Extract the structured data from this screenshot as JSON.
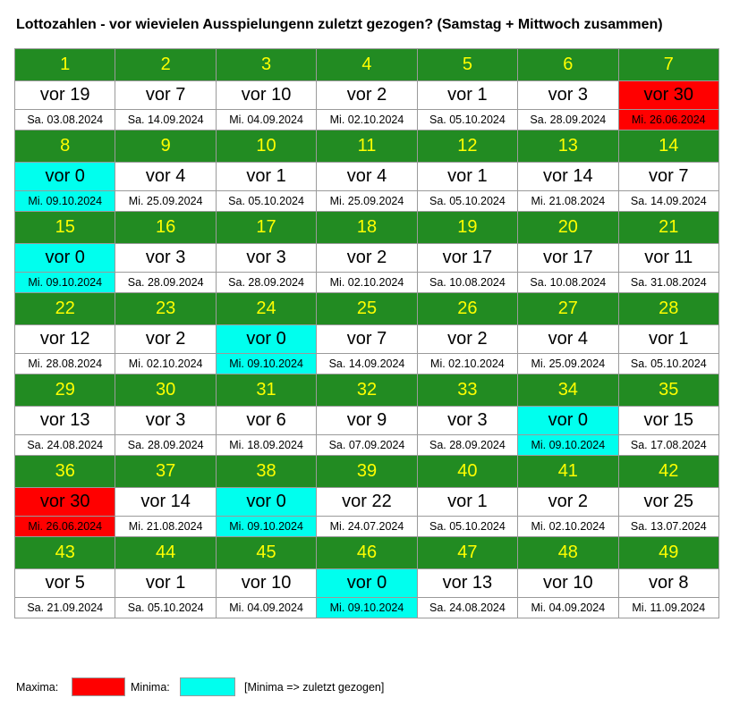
{
  "title": "Lottozahlen - vor wievielen Ausspielungenn zuletzt gezogen? (Samstag + Mittwoch zusammen)",
  "colors": {
    "header_bg": "#228b22",
    "header_text": "#ffff00",
    "maxima": "#ff0000",
    "minima": "#00ffee"
  },
  "numbers": [
    {
      "n": "1",
      "vor": "vor 19",
      "date": "Sa. 03.08.2024",
      "mark": ""
    },
    {
      "n": "2",
      "vor": "vor 7",
      "date": "Sa. 14.09.2024",
      "mark": ""
    },
    {
      "n": "3",
      "vor": "vor 10",
      "date": "Mi. 04.09.2024",
      "mark": ""
    },
    {
      "n": "4",
      "vor": "vor 2",
      "date": "Mi. 02.10.2024",
      "mark": ""
    },
    {
      "n": "5",
      "vor": "vor 1",
      "date": "Sa. 05.10.2024",
      "mark": ""
    },
    {
      "n": "6",
      "vor": "vor 3",
      "date": "Sa. 28.09.2024",
      "mark": ""
    },
    {
      "n": "7",
      "vor": "vor 30",
      "date": "Mi. 26.06.2024",
      "mark": "max"
    },
    {
      "n": "8",
      "vor": "vor 0",
      "date": "Mi. 09.10.2024",
      "mark": "min"
    },
    {
      "n": "9",
      "vor": "vor 4",
      "date": "Mi. 25.09.2024",
      "mark": ""
    },
    {
      "n": "10",
      "vor": "vor 1",
      "date": "Sa. 05.10.2024",
      "mark": ""
    },
    {
      "n": "11",
      "vor": "vor 4",
      "date": "Mi. 25.09.2024",
      "mark": ""
    },
    {
      "n": "12",
      "vor": "vor 1",
      "date": "Sa. 05.10.2024",
      "mark": ""
    },
    {
      "n": "13",
      "vor": "vor 14",
      "date": "Mi. 21.08.2024",
      "mark": ""
    },
    {
      "n": "14",
      "vor": "vor 7",
      "date": "Sa. 14.09.2024",
      "mark": ""
    },
    {
      "n": "15",
      "vor": "vor 0",
      "date": "Mi. 09.10.2024",
      "mark": "min"
    },
    {
      "n": "16",
      "vor": "vor 3",
      "date": "Sa. 28.09.2024",
      "mark": ""
    },
    {
      "n": "17",
      "vor": "vor 3",
      "date": "Sa. 28.09.2024",
      "mark": ""
    },
    {
      "n": "18",
      "vor": "vor 2",
      "date": "Mi. 02.10.2024",
      "mark": ""
    },
    {
      "n": "19",
      "vor": "vor 17",
      "date": "Sa. 10.08.2024",
      "mark": ""
    },
    {
      "n": "20",
      "vor": "vor 17",
      "date": "Sa. 10.08.2024",
      "mark": ""
    },
    {
      "n": "21",
      "vor": "vor 11",
      "date": "Sa. 31.08.2024",
      "mark": ""
    },
    {
      "n": "22",
      "vor": "vor 12",
      "date": "Mi. 28.08.2024",
      "mark": ""
    },
    {
      "n": "23",
      "vor": "vor 2",
      "date": "Mi. 02.10.2024",
      "mark": ""
    },
    {
      "n": "24",
      "vor": "vor 0",
      "date": "Mi. 09.10.2024",
      "mark": "min"
    },
    {
      "n": "25",
      "vor": "vor 7",
      "date": "Sa. 14.09.2024",
      "mark": ""
    },
    {
      "n": "26",
      "vor": "vor 2",
      "date": "Mi. 02.10.2024",
      "mark": ""
    },
    {
      "n": "27",
      "vor": "vor 4",
      "date": "Mi. 25.09.2024",
      "mark": ""
    },
    {
      "n": "28",
      "vor": "vor 1",
      "date": "Sa. 05.10.2024",
      "mark": ""
    },
    {
      "n": "29",
      "vor": "vor 13",
      "date": "Sa. 24.08.2024",
      "mark": ""
    },
    {
      "n": "30",
      "vor": "vor 3",
      "date": "Sa. 28.09.2024",
      "mark": ""
    },
    {
      "n": "31",
      "vor": "vor 6",
      "date": "Mi. 18.09.2024",
      "mark": ""
    },
    {
      "n": "32",
      "vor": "vor 9",
      "date": "Sa. 07.09.2024",
      "mark": ""
    },
    {
      "n": "33",
      "vor": "vor 3",
      "date": "Sa. 28.09.2024",
      "mark": ""
    },
    {
      "n": "34",
      "vor": "vor 0",
      "date": "Mi. 09.10.2024",
      "mark": "min"
    },
    {
      "n": "35",
      "vor": "vor 15",
      "date": "Sa. 17.08.2024",
      "mark": ""
    },
    {
      "n": "36",
      "vor": "vor 30",
      "date": "Mi. 26.06.2024",
      "mark": "max"
    },
    {
      "n": "37",
      "vor": "vor 14",
      "date": "Mi. 21.08.2024",
      "mark": ""
    },
    {
      "n": "38",
      "vor": "vor 0",
      "date": "Mi. 09.10.2024",
      "mark": "min"
    },
    {
      "n": "39",
      "vor": "vor 22",
      "date": "Mi. 24.07.2024",
      "mark": ""
    },
    {
      "n": "40",
      "vor": "vor 1",
      "date": "Sa. 05.10.2024",
      "mark": ""
    },
    {
      "n": "41",
      "vor": "vor 2",
      "date": "Mi. 02.10.2024",
      "mark": ""
    },
    {
      "n": "42",
      "vor": "vor 25",
      "date": "Sa. 13.07.2024",
      "mark": ""
    },
    {
      "n": "43",
      "vor": "vor 5",
      "date": "Sa. 21.09.2024",
      "mark": ""
    },
    {
      "n": "44",
      "vor": "vor 1",
      "date": "Sa. 05.10.2024",
      "mark": ""
    },
    {
      "n": "45",
      "vor": "vor 10",
      "date": "Mi. 04.09.2024",
      "mark": ""
    },
    {
      "n": "46",
      "vor": "vor 0",
      "date": "Mi. 09.10.2024",
      "mark": "min"
    },
    {
      "n": "47",
      "vor": "vor 13",
      "date": "Sa. 24.08.2024",
      "mark": ""
    },
    {
      "n": "48",
      "vor": "vor 10",
      "date": "Mi. 04.09.2024",
      "mark": ""
    },
    {
      "n": "49",
      "vor": "vor 8",
      "date": "Mi. 11.09.2024",
      "mark": ""
    }
  ],
  "legend": {
    "maxima_label": "Maxima:",
    "minima_label": "Minima:",
    "note": "[Minima => zuletzt gezogen]"
  }
}
